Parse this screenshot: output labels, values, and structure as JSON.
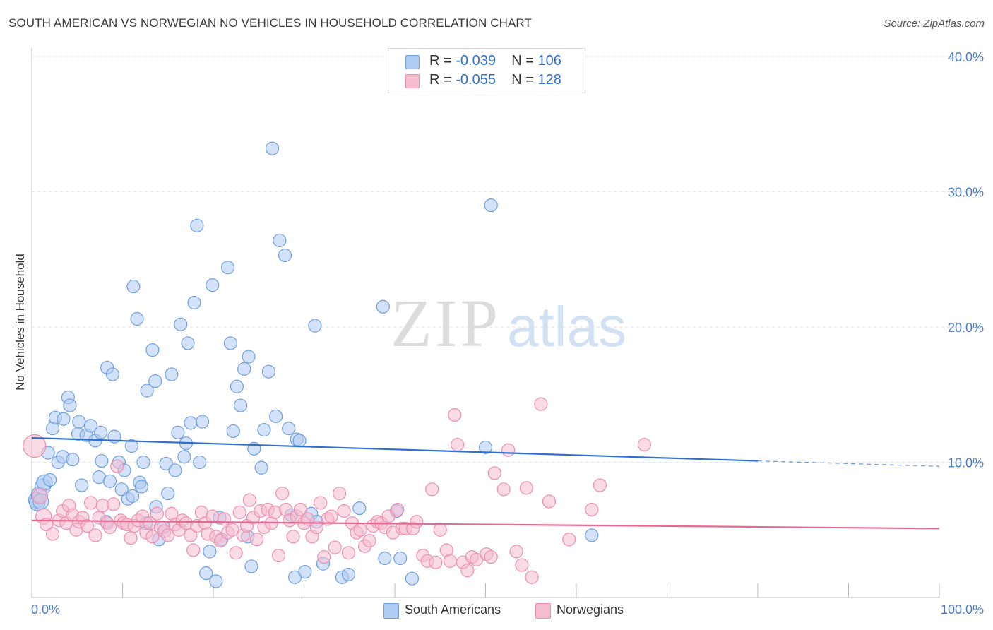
{
  "title": "SOUTH AMERICAN VS NORWEGIAN NO VEHICLES IN HOUSEHOLD CORRELATION CHART",
  "source": "Source: ZipAtlas.com",
  "watermark": {
    "zip": "ZIP",
    "atlas": "atlas"
  },
  "legend": {
    "rows": [
      {
        "r_label": "R = ",
        "r_value": "-0.039",
        "n_label": "N = ",
        "n_value": "106"
      },
      {
        "r_label": "R = ",
        "r_value": "-0.055",
        "n_label": "N = ",
        "n_value": "128"
      }
    ]
  },
  "bottom_legend": [
    "South Americans",
    "Norwegians"
  ],
  "colors": {
    "south_american_fill": "#aecbf2",
    "south_american_stroke": "#6f9fe0",
    "south_american_line": "#2f6fd0",
    "norwegian_fill": "#f6bcd0",
    "norwegian_stroke": "#ec8fb0",
    "norwegian_line": "#e8698f"
  },
  "chart_data": {
    "type": "scatter",
    "title": "SOUTH AMERICAN VS NORWEGIAN NO VEHICLES IN HOUSEHOLD CORRELATION CHART",
    "xlabel": "",
    "ylabel": "No Vehicles in Household",
    "xlim": [
      0,
      100
    ],
    "ylim": [
      0,
      40
    ],
    "x_tick_labels": [
      "0.0%",
      "100.0%"
    ],
    "y_ticks": [
      10,
      20,
      30,
      40
    ],
    "y_tick_labels": [
      "10.0%",
      "20.0%",
      "30.0%",
      "40.0%"
    ],
    "grid": true,
    "legend_position": "top-center",
    "series": [
      {
        "name": "South Americans",
        "r": -0.039,
        "n": 106,
        "trend": {
          "x": [
            0,
            80
          ],
          "y": [
            11.8,
            10.1
          ],
          "dashed_extension_to_x": 100,
          "dashed_extension_y": 9.7
        },
        "points": [
          [
            0.5,
            7.2
          ],
          [
            0.6,
            7.0
          ],
          [
            0.8,
            7.6
          ],
          [
            1.0,
            7.1
          ],
          [
            1.2,
            8.2
          ],
          [
            1.4,
            8.5
          ],
          [
            1.8,
            10.7
          ],
          [
            2.0,
            8.7
          ],
          [
            2.3,
            12.5
          ],
          [
            2.6,
            13.3
          ],
          [
            2.9,
            10.0
          ],
          [
            3.4,
            10.4
          ],
          [
            3.5,
            13.2
          ],
          [
            4.0,
            14.8
          ],
          [
            4.2,
            14.2
          ],
          [
            4.5,
            10.2
          ],
          [
            5.1,
            12.1
          ],
          [
            5.2,
            13.0
          ],
          [
            5.5,
            8.3
          ],
          [
            6.0,
            12.0
          ],
          [
            6.5,
            12.7
          ],
          [
            7.0,
            11.6
          ],
          [
            7.4,
            8.9
          ],
          [
            7.6,
            12.2
          ],
          [
            7.7,
            10.1
          ],
          [
            8.2,
            5.6
          ],
          [
            8.3,
            17.0
          ],
          [
            8.6,
            8.6
          ],
          [
            8.9,
            16.5
          ],
          [
            9.1,
            11.9
          ],
          [
            9.6,
            10.0
          ],
          [
            9.9,
            8.0
          ],
          [
            10.2,
            9.4
          ],
          [
            10.6,
            7.3
          ],
          [
            11.0,
            11.2
          ],
          [
            11.1,
            7.5
          ],
          [
            11.2,
            23.0
          ],
          [
            11.6,
            20.6
          ],
          [
            11.9,
            8.5
          ],
          [
            12.1,
            8.2
          ],
          [
            12.3,
            10.0
          ],
          [
            12.6,
            5.5
          ],
          [
            12.7,
            15.3
          ],
          [
            13.3,
            18.3
          ],
          [
            13.6,
            16.0
          ],
          [
            13.7,
            6.7
          ],
          [
            14.0,
            4.3
          ],
          [
            14.5,
            5.2
          ],
          [
            14.8,
            9.9
          ],
          [
            15.0,
            7.7
          ],
          [
            15.4,
            16.5
          ],
          [
            15.8,
            9.4
          ],
          [
            16.1,
            12.2
          ],
          [
            16.4,
            20.2
          ],
          [
            16.8,
            10.4
          ],
          [
            17.0,
            11.4
          ],
          [
            17.2,
            18.8
          ],
          [
            17.5,
            12.9
          ],
          [
            17.9,
            21.8
          ],
          [
            18.2,
            27.5
          ],
          [
            18.5,
            10.0
          ],
          [
            18.8,
            13.0
          ],
          [
            19.2,
            1.8
          ],
          [
            19.6,
            3.4
          ],
          [
            19.9,
            23.1
          ],
          [
            20.3,
            1.2
          ],
          [
            20.7,
            5.9
          ],
          [
            20.9,
            4.3
          ],
          [
            21.6,
            24.4
          ],
          [
            21.9,
            18.8
          ],
          [
            22.2,
            12.3
          ],
          [
            22.6,
            15.6
          ],
          [
            23.0,
            14.2
          ],
          [
            23.4,
            16.9
          ],
          [
            23.8,
            4.5
          ],
          [
            23.9,
            17.8
          ],
          [
            24.2,
            2.3
          ],
          [
            24.5,
            11.0
          ],
          [
            25.3,
            9.6
          ],
          [
            25.6,
            12.4
          ],
          [
            26.1,
            16.7
          ],
          [
            26.5,
            33.2
          ],
          [
            26.9,
            13.4
          ],
          [
            27.3,
            26.4
          ],
          [
            27.9,
            25.3
          ],
          [
            28.3,
            12.5
          ],
          [
            28.6,
            6.1
          ],
          [
            29.0,
            1.5
          ],
          [
            29.2,
            11.7
          ],
          [
            29.5,
            11.6
          ],
          [
            30.1,
            1.9
          ],
          [
            30.8,
            6.2
          ],
          [
            31.2,
            20.1
          ],
          [
            31.4,
            5.6
          ],
          [
            32.1,
            2.5
          ],
          [
            34.2,
            1.5
          ],
          [
            34.9,
            1.7
          ],
          [
            36.1,
            6.6
          ],
          [
            38.7,
            21.5
          ],
          [
            38.9,
            2.9
          ],
          [
            41.9,
            1.4
          ],
          [
            40.2,
            6.4
          ],
          [
            40.6,
            2.9
          ],
          [
            50.0,
            11.1
          ],
          [
            50.6,
            29.0
          ],
          [
            61.7,
            4.6
          ]
        ]
      },
      {
        "name": "Norwegians",
        "r": -0.055,
        "n": 128,
        "trend": {
          "x": [
            0,
            100
          ],
          "y": [
            5.7,
            5.1
          ]
        },
        "points": [
          [
            0.3,
            11.2
          ],
          [
            0.9,
            7.5
          ],
          [
            1.3,
            6.0
          ],
          [
            1.6,
            5.4
          ],
          [
            2.3,
            4.7
          ],
          [
            3.0,
            5.7
          ],
          [
            3.4,
            6.4
          ],
          [
            3.8,
            5.5
          ],
          [
            4.1,
            6.8
          ],
          [
            4.5,
            6.1
          ],
          [
            4.9,
            5.0
          ],
          [
            5.2,
            5.6
          ],
          [
            5.6,
            5.9
          ],
          [
            6.1,
            5.3
          ],
          [
            6.5,
            7.0
          ],
          [
            7.0,
            4.6
          ],
          [
            7.4,
            5.9
          ],
          [
            7.8,
            6.8
          ],
          [
            8.3,
            5.5
          ],
          [
            8.6,
            5.2
          ],
          [
            9.0,
            6.9
          ],
          [
            9.4,
            9.7
          ],
          [
            9.8,
            5.7
          ],
          [
            10.1,
            5.5
          ],
          [
            10.5,
            5.4
          ],
          [
            10.9,
            4.4
          ],
          [
            11.3,
            5.3
          ],
          [
            11.7,
            5.7
          ],
          [
            12.2,
            6.0
          ],
          [
            12.6,
            4.8
          ],
          [
            13.0,
            5.5
          ],
          [
            13.3,
            4.5
          ],
          [
            13.8,
            6.2
          ],
          [
            14.2,
            5.2
          ],
          [
            14.6,
            4.9
          ],
          [
            15.0,
            4.6
          ],
          [
            15.4,
            6.2
          ],
          [
            15.8,
            5.4
          ],
          [
            16.2,
            5.0
          ],
          [
            16.6,
            5.7
          ],
          [
            17.0,
            5.5
          ],
          [
            17.5,
            4.6
          ],
          [
            17.8,
            3.5
          ],
          [
            18.2,
            5.3
          ],
          [
            18.7,
            6.3
          ],
          [
            19.1,
            5.5
          ],
          [
            19.4,
            4.7
          ],
          [
            19.9,
            6.0
          ],
          [
            20.3,
            4.5
          ],
          [
            20.8,
            4.2
          ],
          [
            21.2,
            5.8
          ],
          [
            21.6,
            4.8
          ],
          [
            22.1,
            5.0
          ],
          [
            22.5,
            3.3
          ],
          [
            22.9,
            6.3
          ],
          [
            23.3,
            4.6
          ],
          [
            23.7,
            5.3
          ],
          [
            24.0,
            7.2
          ],
          [
            24.4,
            5.9
          ],
          [
            24.8,
            4.3
          ],
          [
            25.2,
            6.4
          ],
          [
            25.6,
            5.2
          ],
          [
            26.0,
            6.5
          ],
          [
            26.4,
            5.5
          ],
          [
            26.8,
            6.3
          ],
          [
            27.2,
            3.1
          ],
          [
            27.6,
            7.7
          ],
          [
            28.0,
            6.5
          ],
          [
            28.4,
            5.7
          ],
          [
            28.8,
            4.5
          ],
          [
            29.2,
            6.0
          ],
          [
            29.6,
            6.5
          ],
          [
            30.0,
            5.5
          ],
          [
            30.4,
            5.8
          ],
          [
            30.9,
            4.5
          ],
          [
            31.4,
            5.2
          ],
          [
            31.8,
            7.0
          ],
          [
            32.2,
            3.0
          ],
          [
            32.6,
            5.8
          ],
          [
            33.0,
            6.0
          ],
          [
            33.4,
            3.7
          ],
          [
            33.9,
            7.7
          ],
          [
            34.4,
            6.4
          ],
          [
            34.9,
            3.3
          ],
          [
            35.3,
            5.5
          ],
          [
            35.8,
            4.8
          ],
          [
            36.2,
            5.0
          ],
          [
            36.7,
            3.8
          ],
          [
            37.2,
            4.2
          ],
          [
            37.6,
            5.3
          ],
          [
            38.1,
            5.6
          ],
          [
            38.5,
            5.5
          ],
          [
            38.9,
            5.2
          ],
          [
            39.3,
            6.0
          ],
          [
            39.8,
            4.8
          ],
          [
            40.3,
            6.5
          ],
          [
            40.8,
            5.1
          ],
          [
            41.2,
            5.1
          ],
          [
            42.0,
            5.1
          ],
          [
            42.4,
            5.6
          ],
          [
            43.1,
            3.1
          ],
          [
            43.6,
            2.7
          ],
          [
            44.1,
            8.0
          ],
          [
            44.5,
            2.6
          ],
          [
            45.0,
            5.0
          ],
          [
            45.7,
            3.5
          ],
          [
            46.1,
            2.7
          ],
          [
            46.6,
            13.5
          ],
          [
            46.9,
            11.3
          ],
          [
            47.5,
            2.6
          ],
          [
            48.0,
            2.0
          ],
          [
            48.5,
            3.0
          ],
          [
            49.0,
            2.8
          ],
          [
            50.1,
            3.2
          ],
          [
            50.6,
            3.0
          ],
          [
            51.0,
            9.2
          ],
          [
            52.0,
            8.0
          ],
          [
            52.5,
            10.9
          ],
          [
            53.4,
            3.4
          ],
          [
            54.0,
            2.4
          ],
          [
            54.5,
            8.1
          ],
          [
            55.1,
            1.5
          ],
          [
            56.1,
            14.3
          ],
          [
            57.0,
            7.1
          ],
          [
            59.2,
            4.3
          ],
          [
            61.7,
            6.5
          ],
          [
            62.6,
            8.3
          ],
          [
            67.5,
            11.3
          ]
        ]
      }
    ]
  }
}
